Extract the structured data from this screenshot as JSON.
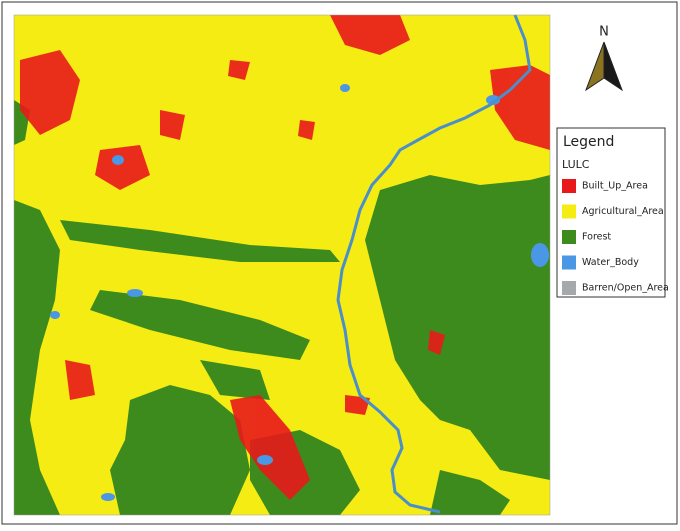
{
  "north_arrow": {
    "label": "N"
  },
  "legend": {
    "title": "Legend",
    "subtitle": "LULC",
    "items": [
      {
        "label": "Built_Up_Area",
        "color": "#e8191b"
      },
      {
        "label": "Agricultural_Area",
        "color": "#f5ec13"
      },
      {
        "label": "Forest",
        "color": "#3d8b1d"
      },
      {
        "label": "Water_Body",
        "color": "#4a97e6"
      },
      {
        "label": "Barren/Open_Area",
        "color": "#a5a9ac"
      }
    ]
  }
}
